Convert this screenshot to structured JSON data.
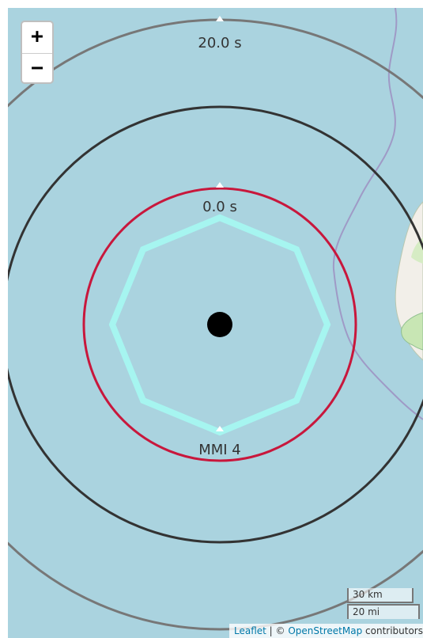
{
  "zoom": {
    "in_label": "+",
    "out_label": "−"
  },
  "rings": [
    {
      "label": "20.0 s",
      "color": "#777777"
    },
    {
      "label": "",
      "color": "#333333"
    },
    {
      "label": "0.0 s",
      "color": "#c8173c"
    }
  ],
  "intensity_contour": {
    "label": "MMI 4",
    "color": "#a6f5f0"
  },
  "epicenter": {
    "color": "#000000"
  },
  "scale": {
    "metric": "30 km",
    "imperial": "20 mi"
  },
  "attribution": {
    "leaflet": "Leaflet",
    "separator": " | © ",
    "osm": "OpenStreetMap",
    "suffix": " contributors"
  },
  "colors": {
    "water": "#aad3df",
    "land": "#f2efe9",
    "coast_park": "#c8e6b4",
    "border": "#9f9ac6"
  }
}
